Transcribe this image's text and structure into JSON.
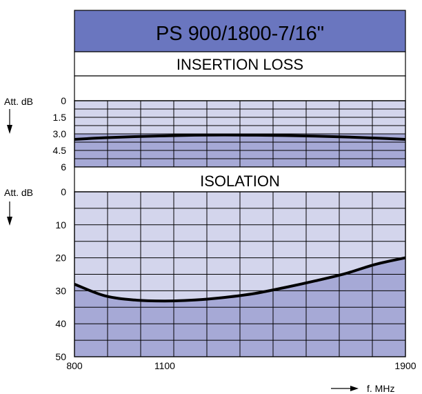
{
  "colors": {
    "title_bg": "#6a76bf",
    "band_light": "#d3d5ec",
    "band_dark": "#a6a9d6",
    "grid": "#000000",
    "curve": "#000000"
  },
  "chart_data": [
    {
      "type": "line",
      "title": "PS 900/1800-7/16\"",
      "panel": "INSERTION LOSS",
      "ylabel": "Att. dB",
      "xlim": [
        800,
        1900
      ],
      "ylim": [
        0,
        6
      ],
      "y_tick_labels": [
        "0",
        "1.5",
        "3.0",
        "4.5",
        "6"
      ],
      "y_tick_values": [
        0,
        1.5,
        3.0,
        4.5,
        6
      ],
      "shaded_below": 3.0,
      "series": [
        {
          "x": [
            800,
            900,
            1000,
            1100,
            1200,
            1300,
            1400,
            1500,
            1600,
            1700,
            1800,
            1900
          ],
          "y": [
            3.5,
            3.35,
            3.25,
            3.18,
            3.12,
            3.1,
            3.12,
            3.15,
            3.2,
            3.28,
            3.38,
            3.5
          ]
        }
      ]
    },
    {
      "type": "area",
      "panel": "ISOLATION",
      "ylabel": "Att. dB",
      "xlabel": "f. MHz",
      "xlim": [
        800,
        1900
      ],
      "x_tick_labels": [
        "800",
        "1100",
        "1900"
      ],
      "x_tick_values": [
        800,
        1100,
        1900
      ],
      "ylim": [
        0,
        50
      ],
      "y_tick_labels": [
        "0",
        "10",
        "20",
        "30",
        "40",
        "50"
      ],
      "y_tick_values": [
        0,
        10,
        20,
        30,
        40,
        50
      ],
      "series": [
        {
          "x": [
            800,
            900,
            1000,
            1100,
            1200,
            1300,
            1400,
            1500,
            1600,
            1700,
            1800,
            1900
          ],
          "y": [
            28,
            31.5,
            32.8,
            33.1,
            32.8,
            32.0,
            30.8,
            29.0,
            27.0,
            24.8,
            22.0,
            20.0
          ]
        }
      ]
    }
  ]
}
